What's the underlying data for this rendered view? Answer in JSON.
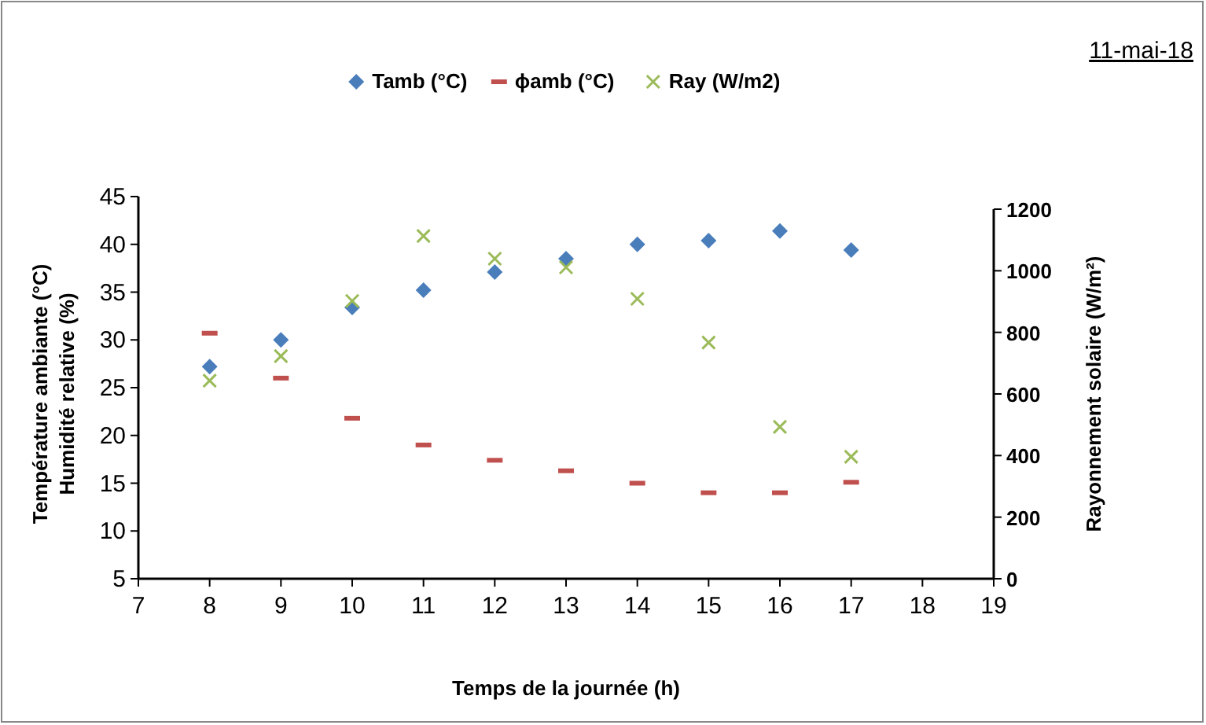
{
  "chart_data": {
    "type": "scatter",
    "xlabel": "Temps de la journée (h)",
    "ylabel": "Température ambiante (°C)\nHumidité relative (%)",
    "y2label": "Rayonnement solaire (W/m²)",
    "annotations": [
      "11-mai-18"
    ],
    "x": [
      8,
      9,
      10,
      11,
      12,
      13,
      14,
      15,
      16,
      17
    ],
    "series": [
      {
        "name": "Tamb (°C)",
        "color": "#4a7ebb",
        "marker": "diamond",
        "values": [
          27.2,
          30.0,
          33.4,
          35.2,
          37.1,
          38.5,
          40.0,
          40.4,
          41.4,
          39.4
        ]
      },
      {
        "name": "ϕamb  (°C)",
        "color": "#c0504d",
        "values": [
          30.7,
          26.0,
          21.8,
          19.0,
          17.4,
          16.3,
          15.0,
          14.0,
          14.0,
          15.1
        ]
      },
      {
        "name": "Ray (W/m2)",
        "color": "#9bbb59",
        "marker": "cross",
        "axis": "y2",
        "values": [
          643,
          723,
          902,
          1113,
          1039,
          1011,
          909,
          767,
          493,
          396
        ]
      }
    ],
    "xlim": [
      7,
      19
    ],
    "xticks": [
      7,
      8,
      9,
      10,
      11,
      12,
      13,
      14,
      15,
      16,
      17,
      18,
      19
    ],
    "ylim": [
      5,
      45
    ],
    "yticks": [
      5,
      10,
      15,
      20,
      25,
      30,
      35,
      40,
      45
    ],
    "y2lim": [
      0,
      1200
    ],
    "y2ticks": [
      0,
      200,
      400,
      600,
      800,
      1000,
      1200
    ],
    "legend": "top",
    "grid": false
  }
}
